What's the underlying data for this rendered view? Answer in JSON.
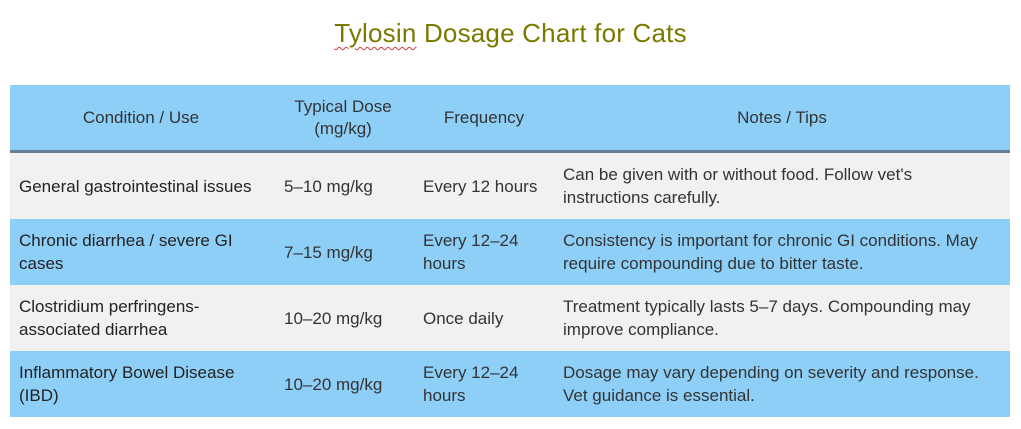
{
  "title": {
    "misspelled_word": "Tylosin",
    "rest": " Dosage Chart for Cats"
  },
  "table": {
    "headers": [
      "Condition / Use",
      "Typical Dose (mg/kg)",
      "Frequency",
      "Notes / Tips"
    ],
    "rows": [
      {
        "condition": "General gastrointestinal issues",
        "dose": "5–10 mg/kg",
        "frequency": "Every 12 hours",
        "notes": "Can be given with or without food. Follow vet's instructions carefully."
      },
      {
        "condition": "Chronic diarrhea / severe GI cases",
        "dose": "7–15 mg/kg",
        "frequency": "Every 12–24 hours",
        "notes": "Consistency is important for chronic GI conditions. May require compounding due to bitter taste."
      },
      {
        "condition": "Clostridium perfringens-associated diarrhea",
        "dose": "10–20 mg/kg",
        "frequency": "Once daily",
        "notes": "Treatment typically lasts 5–7 days. Compounding may improve compliance."
      },
      {
        "condition": "Inflammatory Bowel Disease (IBD)",
        "dose": "10–20 mg/kg",
        "frequency": "Every 12–24 hours",
        "notes": "Dosage may vary depending on severity and response. Vet guidance is essential."
      }
    ]
  },
  "colors": {
    "title": "#7a7a00",
    "header_bg": "#8ecff8",
    "row_light_bg": "#f1f1f1",
    "row_blue_bg": "#8ecff8",
    "spellcheck_underline": "#d23c3c"
  }
}
